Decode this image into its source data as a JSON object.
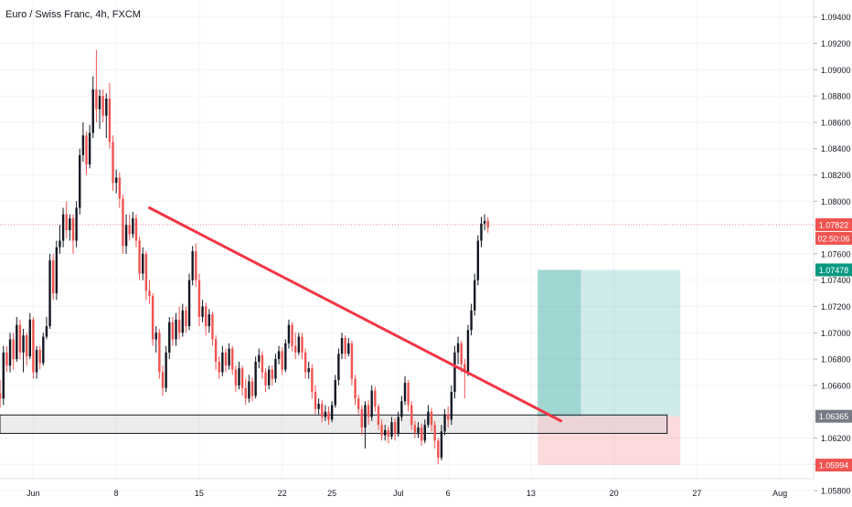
{
  "chart_data": {
    "type": "candlestick",
    "title": "Euro / Swiss Franc, 4h, FXCM",
    "ylim": [
      1.0571,
      1.0953
    ],
    "y_ticks": [
      "1.09400",
      "1.09200",
      "1.09000",
      "1.08800",
      "1.08600",
      "1.08400",
      "1.08200",
      "1.08000",
      "1.07600",
      "1.07400",
      "1.07200",
      "1.07000",
      "1.06800",
      "1.06600",
      "1.06200",
      "1.06000",
      "1.05800"
    ],
    "x_ticks": [
      {
        "label": "Jun",
        "index": 11
      },
      {
        "label": "8",
        "index": 36
      },
      {
        "label": "15",
        "index": 61
      },
      {
        "label": "22",
        "index": 86
      },
      {
        "label": "25",
        "index": 101
      },
      {
        "label": "Jul",
        "index": 121
      },
      {
        "label": "6",
        "index": 136
      },
      {
        "label": "13",
        "index": 161
      },
      {
        "label": "20",
        "index": 186
      },
      {
        "label": "27",
        "index": 211
      },
      {
        "label": "Aug",
        "index": 236
      }
    ],
    "price_labels": [
      {
        "text": "1.07822",
        "value": 1.07822,
        "role": "last-price",
        "color": "#ef5350"
      },
      {
        "text": "02:50:06",
        "role": "countdown",
        "color": "#ef5350"
      },
      {
        "text": "1.07478",
        "value": 1.07478,
        "role": "target",
        "color": "#089981"
      },
      {
        "text": "1.06365",
        "value": 1.06365,
        "role": "entry",
        "color": "#787b86"
      },
      {
        "text": "1.05994",
        "value": 1.05994,
        "role": "stop",
        "color": "#ef5350"
      }
    ],
    "candles": [
      [
        1.063,
        1.0658,
        1.0628,
        1.0654
      ],
      [
        1.0654,
        1.0664,
        1.0643,
        1.065
      ],
      [
        1.065,
        1.069,
        1.0645,
        1.0685
      ],
      [
        1.0685,
        1.069,
        1.067,
        1.0675
      ],
      [
        1.0675,
        1.07,
        1.067,
        1.0695
      ],
      [
        1.0695,
        1.07,
        1.0672,
        1.068
      ],
      [
        1.068,
        1.0712,
        1.0678,
        1.0706
      ],
      [
        1.0706,
        1.071,
        1.068,
        1.0685
      ],
      [
        1.0685,
        1.0703,
        1.067,
        1.0698
      ],
      [
        1.0698,
        1.07,
        1.0675,
        1.0682
      ],
      [
        1.0682,
        1.0715,
        1.068,
        1.071
      ],
      [
        1.071,
        1.0712,
        1.0665,
        1.067
      ],
      [
        1.067,
        1.069,
        1.0665,
        1.0687
      ],
      [
        1.0687,
        1.069,
        1.0672,
        1.0677
      ],
      [
        1.0677,
        1.07,
        1.0675,
        1.0697
      ],
      [
        1.0697,
        1.0712,
        1.0695,
        1.0705
      ],
      [
        1.0705,
        1.076,
        1.0703,
        1.0755
      ],
      [
        1.0755,
        1.076,
        1.0725,
        1.073
      ],
      [
        1.073,
        1.077,
        1.0725,
        1.0765
      ],
      [
        1.0765,
        1.0782,
        1.076,
        1.077
      ],
      [
        1.077,
        1.0795,
        1.0765,
        1.079
      ],
      [
        1.079,
        1.08,
        1.0772,
        1.0778
      ],
      [
        1.0778,
        1.079,
        1.077,
        1.0787
      ],
      [
        1.0787,
        1.079,
        1.076,
        1.077
      ],
      [
        1.077,
        1.08,
        1.0765,
        1.0795
      ],
      [
        1.0795,
        1.084,
        1.079,
        1.0835
      ],
      [
        1.0835,
        1.086,
        1.083,
        1.085
      ],
      [
        1.085,
        1.0853,
        1.082,
        1.0828
      ],
      [
        1.0828,
        1.0858,
        1.0825,
        1.0852
      ],
      [
        1.0852,
        1.0895,
        1.0848,
        1.0885
      ],
      [
        1.0885,
        1.0915,
        1.086,
        1.087
      ],
      [
        1.087,
        1.0885,
        1.0855,
        1.088
      ],
      [
        1.088,
        1.0885,
        1.086,
        1.0865
      ],
      [
        1.0865,
        1.0882,
        1.0848,
        1.0878
      ],
      [
        1.0878,
        1.089,
        1.084,
        1.0845
      ],
      [
        1.0845,
        1.085,
        1.0808,
        1.0814
      ],
      [
        1.0814,
        1.0824,
        1.0806,
        1.0818
      ],
      [
        1.0818,
        1.0822,
        1.0795,
        1.0802
      ],
      [
        1.0802,
        1.0805,
        1.076,
        1.0766
      ],
      [
        1.0766,
        1.079,
        1.076,
        1.0782
      ],
      [
        1.0782,
        1.079,
        1.077,
        1.0775
      ],
      [
        1.0775,
        1.0792,
        1.0772,
        1.0787
      ],
      [
        1.0787,
        1.079,
        1.0765,
        1.077
      ],
      [
        1.077,
        1.0773,
        1.074,
        1.0745
      ],
      [
        1.0745,
        1.0765,
        1.074,
        1.076
      ],
      [
        1.076,
        1.0762,
        1.0725,
        1.0732
      ],
      [
        1.0732,
        1.074,
        1.0722,
        1.0728
      ],
      [
        1.0728,
        1.073,
        1.069,
        1.0695
      ],
      [
        1.0695,
        1.0705,
        1.0685,
        1.07
      ],
      [
        1.07,
        1.0703,
        1.0665,
        1.067
      ],
      [
        1.067,
        1.0675,
        1.0652,
        1.0658
      ],
      [
        1.0658,
        1.069,
        1.0655,
        1.0685
      ],
      [
        1.0685,
        1.0712,
        1.068,
        1.0708
      ],
      [
        1.0708,
        1.0712,
        1.069,
        1.0695
      ],
      [
        1.0695,
        1.0715,
        1.069,
        1.071
      ],
      [
        1.071,
        1.072,
        1.0695,
        1.07
      ],
      [
        1.07,
        1.0722,
        1.0697,
        1.0717
      ],
      [
        1.0717,
        1.072,
        1.07,
        1.0705
      ],
      [
        1.0705,
        1.0745,
        1.0702,
        1.074
      ],
      [
        1.074,
        1.0766,
        1.0736,
        1.0762
      ],
      [
        1.0762,
        1.0768,
        1.0735,
        1.074
      ],
      [
        1.074,
        1.0745,
        1.0705,
        1.0712
      ],
      [
        1.0712,
        1.0725,
        1.0708,
        1.072
      ],
      [
        1.072,
        1.0723,
        1.0698,
        1.0705
      ],
      [
        1.0705,
        1.0718,
        1.07,
        1.0714
      ],
      [
        1.0714,
        1.0716,
        1.069,
        1.0695
      ],
      [
        1.0695,
        1.0698,
        1.0672,
        1.0678
      ],
      [
        1.0678,
        1.0682,
        1.0665,
        1.067
      ],
      [
        1.067,
        1.069,
        1.0667,
        1.0685
      ],
      [
        1.0685,
        1.0688,
        1.067,
        1.0675
      ],
      [
        1.0675,
        1.0692,
        1.0672,
        1.0688
      ],
      [
        1.0688,
        1.069,
        1.0668,
        1.0672
      ],
      [
        1.0672,
        1.0675,
        1.0655,
        1.066
      ],
      [
        1.066,
        1.0678,
        1.0657,
        1.0673
      ],
      [
        1.0673,
        1.0675,
        1.0652,
        1.0658
      ],
      [
        1.0658,
        1.0665,
        1.0645,
        1.065
      ],
      [
        1.065,
        1.0668,
        1.0647,
        1.0663
      ],
      [
        1.0663,
        1.0666,
        1.0648,
        1.0652
      ],
      [
        1.0652,
        1.0682,
        1.065,
        1.0678
      ],
      [
        1.0678,
        1.0688,
        1.0673,
        1.0683
      ],
      [
        1.0683,
        1.0686,
        1.0665,
        1.067
      ],
      [
        1.067,
        1.0673,
        1.0655,
        1.066
      ],
      [
        1.066,
        1.0675,
        1.0657,
        1.0672
      ],
      [
        1.0672,
        1.0675,
        1.066,
        1.0665
      ],
      [
        1.0665,
        1.0684,
        1.0662,
        1.068
      ],
      [
        1.068,
        1.069,
        1.0676,
        1.0686
      ],
      [
        1.0686,
        1.0689,
        1.0668,
        1.0672
      ],
      [
        1.0672,
        1.0695,
        1.067,
        1.0692
      ],
      [
        1.0692,
        1.071,
        1.0688,
        1.0706
      ],
      [
        1.0706,
        1.0708,
        1.0686,
        1.069
      ],
      [
        1.069,
        1.07,
        1.068,
        1.0685
      ],
      [
        1.0685,
        1.07,
        1.0683,
        1.0697
      ],
      [
        1.0697,
        1.07,
        1.068,
        1.0685
      ],
      [
        1.0685,
        1.0688,
        1.0665,
        1.067
      ],
      [
        1.067,
        1.0678,
        1.0665,
        1.0673
      ],
      [
        1.0673,
        1.0676,
        1.065,
        1.0655
      ],
      [
        1.0655,
        1.066,
        1.0638,
        1.0642
      ],
      [
        1.0642,
        1.065,
        1.0638,
        1.0646
      ],
      [
        1.0646,
        1.0649,
        1.0632,
        1.0636
      ],
      [
        1.0636,
        1.0645,
        1.0633,
        1.064
      ],
      [
        1.064,
        1.0644,
        1.063,
        1.0634
      ],
      [
        1.0634,
        1.0648,
        1.0632,
        1.0645
      ],
      [
        1.0645,
        1.0668,
        1.0643,
        1.0664
      ],
      [
        1.0664,
        1.0688,
        1.066,
        1.0684
      ],
      [
        1.0684,
        1.07,
        1.068,
        1.0696
      ],
      [
        1.0696,
        1.0698,
        1.068,
        1.0684
      ],
      [
        1.0684,
        1.0696,
        1.0682,
        1.0692
      ],
      [
        1.0692,
        1.0694,
        1.066,
        1.0665
      ],
      [
        1.0665,
        1.0668,
        1.0645,
        1.065
      ],
      [
        1.065,
        1.0653,
        1.0638,
        1.0642
      ],
      [
        1.0642,
        1.0645,
        1.0622,
        1.0628
      ],
      [
        1.0628,
        1.0648,
        1.0612,
        1.0645
      ],
      [
        1.0645,
        1.0649,
        1.063,
        1.0636
      ],
      [
        1.0636,
        1.066,
        1.0633,
        1.0656
      ],
      [
        1.0656,
        1.0659,
        1.064,
        1.0644
      ],
      [
        1.0644,
        1.0646,
        1.0626,
        1.063
      ],
      [
        1.063,
        1.0634,
        1.0618,
        1.0622
      ],
      [
        1.0622,
        1.063,
        1.0618,
        1.0626
      ],
      [
        1.0626,
        1.0629,
        1.0616,
        1.0621
      ],
      [
        1.0621,
        1.0636,
        1.0619,
        1.0632
      ],
      [
        1.0632,
        1.0635,
        1.0618,
        1.0623
      ],
      [
        1.0623,
        1.064,
        1.0621,
        1.0636
      ],
      [
        1.0636,
        1.0652,
        1.0633,
        1.0648
      ],
      [
        1.0648,
        1.0667,
        1.0645,
        1.0662
      ],
      [
        1.0662,
        1.0664,
        1.064,
        1.0645
      ],
      [
        1.0645,
        1.0648,
        1.0626,
        1.063
      ],
      [
        1.063,
        1.0633,
        1.062,
        1.0624
      ],
      [
        1.0624,
        1.0632,
        1.062,
        1.0628
      ],
      [
        1.0628,
        1.0631,
        1.0614,
        1.0618
      ],
      [
        1.0618,
        1.0634,
        1.0616,
        1.063
      ],
      [
        1.063,
        1.0645,
        1.0628,
        1.064
      ],
      [
        1.064,
        1.0643,
        1.0625,
        1.063
      ],
      [
        1.063,
        1.0633,
        1.0612,
        1.0618
      ],
      [
        1.0618,
        1.062,
        1.06,
        1.0605
      ],
      [
        1.0605,
        1.063,
        1.0603,
        1.0625
      ],
      [
        1.0625,
        1.0642,
        1.0622,
        1.0638
      ],
      [
        1.0638,
        1.0644,
        1.0628,
        1.0634
      ],
      [
        1.0634,
        1.066,
        1.063,
        1.0655
      ],
      [
        1.0655,
        1.069,
        1.065,
        1.0685
      ],
      [
        1.0685,
        1.0697,
        1.0676,
        1.0692
      ],
      [
        1.0692,
        1.0694,
        1.067,
        1.0676
      ],
      [
        1.0676,
        1.068,
        1.065,
        1.067
      ],
      [
        1.067,
        1.0706,
        1.0667,
        1.0702
      ],
      [
        1.0702,
        1.0722,
        1.0698,
        1.0717
      ],
      [
        1.0717,
        1.0745,
        1.0713,
        1.074
      ],
      [
        1.074,
        1.0774,
        1.0736,
        1.077
      ],
      [
        1.077,
        1.0788,
        1.0765,
        1.0783
      ],
      [
        1.0783,
        1.079,
        1.0778,
        1.0785
      ],
      [
        1.0785,
        1.0788,
        1.0776,
        1.078
      ]
    ]
  }
}
